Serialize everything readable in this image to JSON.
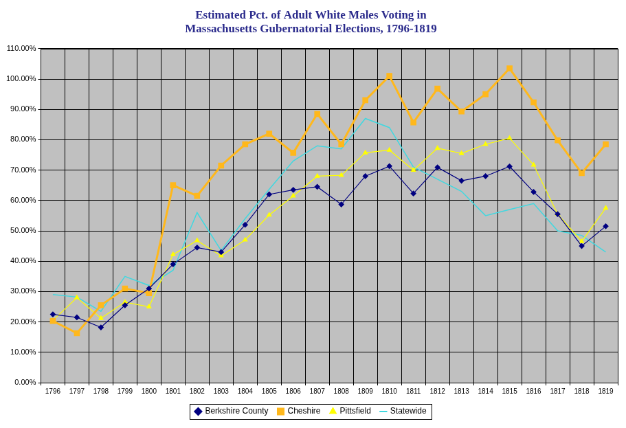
{
  "chart_data": {
    "type": "line",
    "title": [
      "Estimated Pct. of Adult White Males Voting in",
      "Massachusetts Gubernatorial Elections, 1796-1819"
    ],
    "categories": [
      "1796",
      "1797",
      "1798",
      "1799",
      "1800",
      "1801",
      "1802",
      "1803",
      "1804",
      "1805",
      "1806",
      "1807",
      "1808",
      "1809",
      "1810",
      "1811",
      "1812",
      "1813",
      "1814",
      "1815",
      "1816",
      "1817",
      "1818",
      "1819"
    ],
    "series": [
      {
        "name": "Berkshire County",
        "color": "#000080",
        "marker": "diamond",
        "values": [
          22.5,
          21.5,
          18.2,
          25.5,
          31,
          39,
          44.5,
          43,
          52,
          62,
          63.5,
          64.5,
          58.7,
          68,
          71.3,
          62.3,
          70.9,
          66.5,
          68,
          71.2,
          62.8,
          55.5,
          45,
          51.5
        ]
      },
      {
        "name": "Cheshire",
        "color": "#FFB81C",
        "marker": "square",
        "values": [
          20.3,
          16.3,
          25.5,
          31,
          29.5,
          65,
          61.5,
          71.5,
          78.5,
          82,
          75.7,
          88.5,
          78.5,
          93,
          101,
          85.7,
          96.8,
          89.3,
          95,
          103.5,
          92.3,
          79.8,
          69,
          78.5
        ]
      },
      {
        "name": "Pittsfield",
        "color": "#FFFF00",
        "marker": "triangle",
        "values": [
          20.5,
          28,
          21.2,
          26.5,
          25,
          42.2,
          46.8,
          41.8,
          47,
          55.2,
          61.5,
          68,
          68.3,
          75.7,
          76.6,
          70,
          77.2,
          75.5,
          78.5,
          80.5,
          71.7,
          55.5,
          46.5,
          57.5
        ]
      },
      {
        "name": "Statewide",
        "color": "#40D8E0",
        "marker": "none",
        "values": [
          29,
          28.2,
          23.5,
          35,
          32,
          37,
          56,
          43.5,
          54,
          63.7,
          73,
          78,
          77,
          87,
          84,
          71,
          67,
          63,
          55,
          57,
          59,
          50,
          48.5,
          43
        ]
      }
    ],
    "ylim": [
      0,
      110
    ],
    "yticks": [
      {
        "value": 0,
        "label": "0.00%"
      },
      {
        "value": 10,
        "label": "10.00%"
      },
      {
        "value": 20,
        "label": "20.00%"
      },
      {
        "value": 30,
        "label": "30.00%"
      },
      {
        "value": 40,
        "label": "40.00%"
      },
      {
        "value": 50,
        "label": "50.00%"
      },
      {
        "value": 60,
        "label": "60.00%"
      },
      {
        "value": 70,
        "label": "70.00%"
      },
      {
        "value": 80,
        "label": "80.00%"
      },
      {
        "value": 90,
        "label": "90.00%"
      },
      {
        "value": 100,
        "label": "100.00%"
      },
      {
        "value": 110,
        "label": "110.00%"
      }
    ],
    "grid": true,
    "legend": "bottom"
  }
}
